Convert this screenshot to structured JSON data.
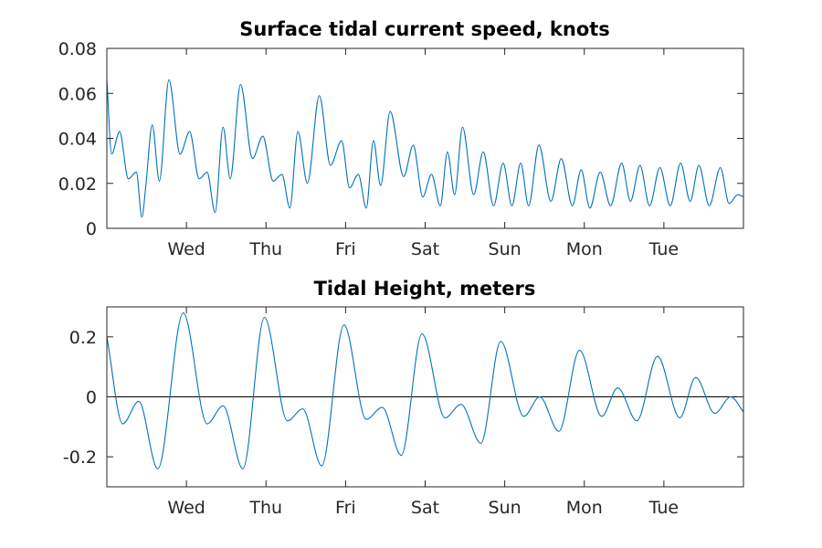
{
  "chart_data": [
    {
      "type": "line",
      "title": "Surface tidal current speed, knots",
      "xlabel": "",
      "ylabel": "",
      "x_tick_labels": [
        "Wed",
        "Thu",
        "Fri",
        "Sat",
        "Sun",
        "Mon",
        "Tue"
      ],
      "x_tick_days": [
        1,
        2,
        3,
        4,
        5,
        6,
        7
      ],
      "xlim_days": [
        0,
        8
      ],
      "ylim": [
        0,
        0.08
      ],
      "y_ticks": [
        0,
        0.02,
        0.04,
        0.06,
        0.08
      ],
      "y_tick_labels": [
        "0",
        "0.02",
        "0.04",
        "0.06",
        "0.08"
      ],
      "grid": false,
      "color": "#0072bd",
      "series": [
        {
          "x_days": [
            0.0,
            0.06,
            0.16,
            0.27,
            0.37,
            0.44,
            0.49,
            0.57,
            0.66,
            0.78,
            0.92,
            1.04,
            1.16,
            1.26,
            1.36,
            1.46,
            1.55,
            1.68,
            1.83,
            1.96,
            2.09,
            2.2,
            2.3,
            2.4,
            2.52,
            2.67,
            2.81,
            2.95,
            3.05,
            3.16,
            3.26,
            3.35,
            3.44,
            3.56,
            3.73,
            3.85,
            3.97,
            4.08,
            4.19,
            4.28,
            4.37,
            4.47,
            4.61,
            4.73,
            4.86,
            4.98,
            5.09,
            5.2,
            5.3,
            5.43,
            5.58,
            5.71,
            5.85,
            5.96,
            6.07,
            6.2,
            6.33,
            6.47,
            6.58,
            6.7,
            6.82,
            6.95,
            7.08,
            7.21,
            7.33,
            7.44,
            7.57,
            7.71,
            7.82,
            7.93,
            8.0
          ],
          "y": [
            0.066,
            0.033,
            0.043,
            0.022,
            0.025,
            0.005,
            0.019,
            0.046,
            0.021,
            0.066,
            0.033,
            0.043,
            0.022,
            0.025,
            0.007,
            0.045,
            0.022,
            0.064,
            0.031,
            0.041,
            0.021,
            0.024,
            0.009,
            0.043,
            0.02,
            0.059,
            0.028,
            0.039,
            0.018,
            0.024,
            0.009,
            0.039,
            0.019,
            0.052,
            0.023,
            0.037,
            0.014,
            0.024,
            0.01,
            0.034,
            0.015,
            0.045,
            0.015,
            0.034,
            0.01,
            0.029,
            0.01,
            0.029,
            0.01,
            0.037,
            0.012,
            0.031,
            0.01,
            0.026,
            0.009,
            0.025,
            0.01,
            0.029,
            0.012,
            0.028,
            0.01,
            0.027,
            0.01,
            0.029,
            0.012,
            0.028,
            0.01,
            0.027,
            0.011,
            0.015,
            0.014
          ]
        }
      ]
    },
    {
      "type": "line",
      "title": "Tidal Height, meters",
      "xlabel": "",
      "ylabel": "",
      "x_tick_labels": [
        "Wed",
        "Thu",
        "Fri",
        "Sat",
        "Sun",
        "Mon",
        "Tue"
      ],
      "x_tick_days": [
        1,
        2,
        3,
        4,
        5,
        6,
        7
      ],
      "xlim_days": [
        0,
        8
      ],
      "ylim": [
        -0.3,
        0.3
      ],
      "y_ticks": [
        -0.2,
        0,
        0.2
      ],
      "y_tick_labels": [
        "-0.2",
        "0",
        "0.2"
      ],
      "reference_line": 0,
      "grid": false,
      "color": "#0072bd",
      "series": [
        {
          "x_days": [
            0.0,
            0.2,
            0.4,
            0.64,
            0.96,
            1.26,
            1.46,
            1.71,
            1.98,
            2.27,
            2.46,
            2.7,
            2.98,
            3.26,
            3.46,
            3.7,
            3.96,
            4.25,
            4.45,
            4.7,
            4.95,
            5.24,
            5.44,
            5.68,
            5.94,
            6.22,
            6.42,
            6.66,
            6.92,
            7.2,
            7.4,
            7.64,
            7.84,
            8.0
          ],
          "y": [
            0.2,
            -0.09,
            -0.015,
            -0.24,
            0.28,
            -0.09,
            -0.03,
            -0.24,
            0.265,
            -0.08,
            -0.04,
            -0.23,
            0.24,
            -0.075,
            -0.035,
            -0.195,
            0.21,
            -0.07,
            -0.025,
            -0.155,
            0.185,
            -0.065,
            0.0,
            -0.115,
            0.155,
            -0.065,
            0.03,
            -0.08,
            0.135,
            -0.07,
            0.065,
            -0.055,
            0.0,
            -0.05
          ]
        }
      ]
    }
  ]
}
